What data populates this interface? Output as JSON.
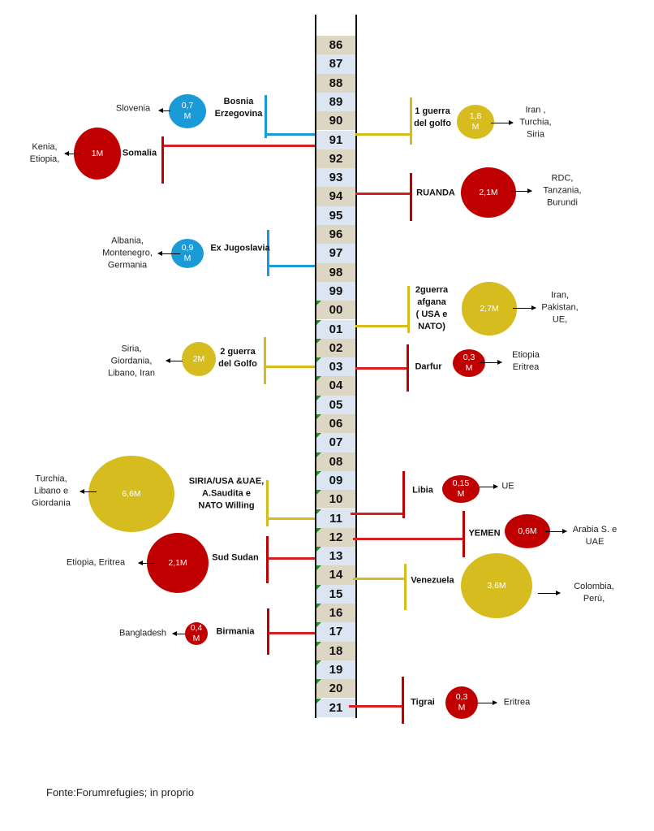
{
  "years": [
    "86",
    "87",
    "88",
    "89",
    "90",
    "91",
    "92",
    "93",
    "94",
    "95",
    "96",
    "97",
    "98",
    "99",
    "00",
    "01",
    "02",
    "03",
    "04",
    "05",
    "06",
    "07",
    "08",
    "09",
    "10",
    "11",
    "12",
    "13",
    "14",
    "15",
    "16",
    "17",
    "18",
    "19",
    "20",
    "21"
  ],
  "colors": {
    "blue": "#1a9ad6",
    "red": "#c00000",
    "yellow": "#d6bc1e",
    "line_red": "#d42020"
  },
  "events": [
    {
      "name": "Bosnia\nErzegovina",
      "year": "91",
      "refugees": "0,7\nM",
      "destinations": "Slovenia",
      "color": "blue"
    },
    {
      "name": "Somalia",
      "year": "91",
      "refugees": "1M",
      "destinations": "Kenia,\nEtiopia,",
      "color": "red"
    },
    {
      "name": "Ex Jugoslavia",
      "year": "98",
      "refugees": "0,9\nM",
      "destinations": "Albania,\nMontenegro,\nGermania",
      "color": "blue"
    },
    {
      "name": "2 guerra\ndel Golfo",
      "year": "03",
      "refugees": "2M",
      "destinations": "Siria,\nGiordania,\nLibano, Iran",
      "color": "yellow"
    },
    {
      "name": "SIRIA/USA &UAE,\nA.Saudita e\nNATO Willing",
      "year": "11",
      "refugees": "6,6M",
      "destinations": "Turchia,\nLibano e\nGiordania",
      "color": "yellow"
    },
    {
      "name": "Sud Sudan",
      "year": "13",
      "refugees": "2,1M",
      "destinations": "Etiopia, Eritrea",
      "color": "red"
    },
    {
      "name": "Birmania",
      "year": "17",
      "refugees": "0,4\nM",
      "destinations": "Bangladesh",
      "color": "red"
    },
    {
      "name": "1 guerra\ndel golfo",
      "year": "91",
      "refugees": "1,8\nM",
      "destinations": "Iran ,\nTurchia,\nSiria",
      "color": "yellow"
    },
    {
      "name": "RUANDA",
      "year": "94",
      "refugees": "2,1M",
      "destinations": "RDC,\nTanzania,\nBurundi",
      "color": "red"
    },
    {
      "name": "2guerra\nafgana\n( USA e\nNATO)",
      "year": "01",
      "refugees": "2,7M",
      "destinations": "Iran,\nPakistan,\nUE,",
      "color": "yellow"
    },
    {
      "name": "Darfur",
      "year": "03",
      "refugees": "0,3\nM",
      "destinations": "Etiopia\nEritrea",
      "color": "red"
    },
    {
      "name": "Libia",
      "year": "11",
      "refugees": "0,15\nM",
      "destinations": "UE",
      "color": "red"
    },
    {
      "name": "YEMEN",
      "year": "12",
      "refugees": "0,6M",
      "destinations": "Arabia S. e\nUAE",
      "color": "red"
    },
    {
      "name": "Venezuela",
      "year": "14",
      "refugees": "3,6M",
      "destinations": "Colombia,\nPerù,",
      "color": "yellow"
    },
    {
      "name": "Tigrai",
      "year": "21",
      "refugees": "0,3\nM",
      "destinations": "Eritrea",
      "color": "red"
    }
  ],
  "source": "Fonte:Forumrefugies; in proprio"
}
